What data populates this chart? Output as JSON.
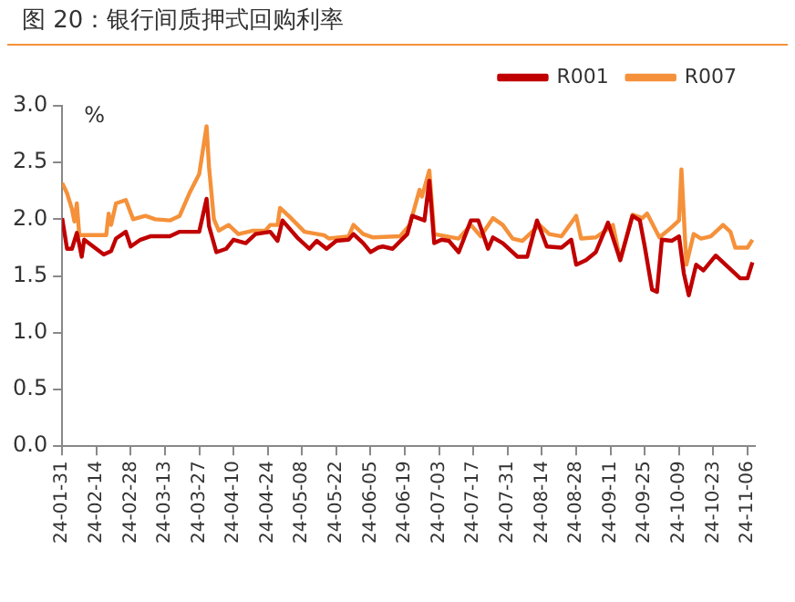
{
  "chart_data": {
    "type": "line",
    "title": "图 20：银行间质押式回购利率",
    "ylabel": "%",
    "xlim": [
      "--01-31",
      "--11-09"
    ],
    "xticks": [
      {
        "value": "--01-31",
        "label": "24-01-31"
      },
      {
        "value": "--02-14",
        "label": "24-02-14"
      },
      {
        "value": "--02-28",
        "label": "24-02-28"
      },
      {
        "value": "--03-13",
        "label": "24-03-13"
      },
      {
        "value": "--03-27",
        "label": "24-03-27"
      },
      {
        "value": "--04-10",
        "label": "24-04-10"
      },
      {
        "value": "--04-24",
        "label": "24-04-24"
      },
      {
        "value": "--05-08",
        "label": "24-05-08"
      },
      {
        "value": "--05-22",
        "label": "24-05-22"
      },
      {
        "value": "--06-05",
        "label": "24-06-05"
      },
      {
        "value": "--06-19",
        "label": "24-06-19"
      },
      {
        "value": "--07-03",
        "label": "24-07-03"
      },
      {
        "value": "--07-17",
        "label": "24-07-17"
      },
      {
        "value": "--07-31",
        "label": "24-07-31"
      },
      {
        "value": "--08-14",
        "label": "24-08-14"
      },
      {
        "value": "--08-28",
        "label": "24-08-28"
      },
      {
        "value": "--09-11",
        "label": "24-09-11"
      },
      {
        "value": "--09-25",
        "label": "24-09-25"
      },
      {
        "value": "--10-09",
        "label": "24-10-09"
      },
      {
        "value": "--10-23",
        "label": "24-10-23"
      },
      {
        "value": "--11-06",
        "label": "24-11-06"
      }
    ],
    "ylim": [
      0,
      3
    ],
    "yticks": [
      {
        "value": 0,
        "label": "0.0"
      },
      {
        "value": 0.5,
        "label": "0.5"
      },
      {
        "value": 1,
        "label": "1.0"
      },
      {
        "value": 1.5,
        "label": "1.5"
      },
      {
        "value": 2,
        "label": "2.0"
      },
      {
        "value": 2.5,
        "label": "2.5"
      },
      {
        "value": 3,
        "label": "3.0"
      }
    ],
    "grid": false,
    "legend": "top",
    "marker": "none",
    "line_style": "solid",
    "series": [
      {
        "name": "R001",
        "color": "#c00000",
        "x": [
          "--01-31",
          "--02-02",
          "--02-04",
          "--02-06",
          "--02-07",
          "--02-08",
          "--02-09",
          "--02-17",
          "--02-20",
          "--02-22",
          "--02-26",
          "--02-28",
          "--03-03",
          "--03-07",
          "--03-15",
          "--03-19",
          "--03-27",
          "--03-30",
          "--03-31",
          "--04-03",
          "--04-07",
          "--04-10",
          "--04-15",
          "--04-19",
          "--04-25",
          "--04-28",
          "--04-30",
          "--05-06",
          "--05-11",
          "--05-14",
          "--05-18",
          "--05-22",
          "--05-27",
          "--05-29",
          "--06-02",
          "--06-05",
          "--06-08",
          "--06-10",
          "--06-14",
          "--06-20",
          "--06-22",
          "--06-27",
          "--06-29",
          "--07-01",
          "--07-04",
          "--07-07",
          "--07-11",
          "--07-16",
          "--07-19",
          "--07-23",
          "--07-25",
          "--07-29",
          "--08-04",
          "--08-08",
          "--08-12",
          "--08-16",
          "--08-22",
          "--08-26",
          "--08-28",
          "--09-01",
          "--09-05",
          "--09-10",
          "--09-15",
          "--09-20",
          "--09-23",
          "--09-25",
          "--09-28",
          "--09-30",
          "--10-02",
          "--10-06",
          "--10-09",
          "--10-11",
          "--10-13",
          "--10-16",
          "--10-19",
          "--10-24",
          "--10-28",
          "--11-03",
          "--11-06",
          "--11-08"
        ],
        "values": [
          2.01,
          1.74,
          1.74,
          1.88,
          1.78,
          1.67,
          1.82,
          1.69,
          1.72,
          1.83,
          1.89,
          1.76,
          1.82,
          1.85,
          1.85,
          1.89,
          1.89,
          2.18,
          1.94,
          1.71,
          1.74,
          1.82,
          1.79,
          1.87,
          1.89,
          1.81,
          1.99,
          1.84,
          1.74,
          1.81,
          1.74,
          1.81,
          1.82,
          1.87,
          1.79,
          1.71,
          1.75,
          1.76,
          1.74,
          1.87,
          2.03,
          1.99,
          2.34,
          1.79,
          1.82,
          1.81,
          1.71,
          1.99,
          1.99,
          1.74,
          1.84,
          1.79,
          1.67,
          1.67,
          1.99,
          1.76,
          1.75,
          1.82,
          1.6,
          1.64,
          1.71,
          1.97,
          1.64,
          2.03,
          1.99,
          1.76,
          1.38,
          1.36,
          1.82,
          1.81,
          1.85,
          1.52,
          1.33,
          1.6,
          1.55,
          1.68,
          1.6,
          1.48,
          1.48,
          1.62
        ]
      },
      {
        "name": "R007",
        "color": "#f5913a",
        "x": [
          "--01-31",
          "--02-02",
          "--02-04",
          "--02-05",
          "--02-06",
          "--02-07",
          "--02-18",
          "--02-19",
          "--02-20",
          "--02-22",
          "--02-26",
          "--02-29",
          "--03-05",
          "--03-09",
          "--03-15",
          "--03-19",
          "--03-23",
          "--03-27",
          "--03-30",
          "--03-31",
          "--04-02",
          "--04-04",
          "--04-08",
          "--04-12",
          "--04-18",
          "--04-23",
          "--04-25",
          "--04-28",
          "--04-29",
          "--05-03",
          "--05-09",
          "--05-17",
          "--05-19",
          "--05-27",
          "--05-29",
          "--06-02",
          "--06-06",
          "--06-17",
          "--06-21",
          "--06-25",
          "--06-26",
          "--06-29",
          "--07-01",
          "--07-06",
          "--07-11",
          "--07-16",
          "--07-20",
          "--07-25",
          "--07-29",
          "--08-02",
          "--08-06",
          "--08-13",
          "--08-17",
          "--08-22",
          "--08-28",
          "--08-30",
          "--09-05",
          "--09-09",
          "--09-12",
          "--09-15",
          "--09-20",
          "--09-24",
          "--09-26",
          "--10-01",
          "--10-06",
          "--10-09",
          "--10-10",
          "--10-12",
          "--10-15",
          "--10-18",
          "--10-22",
          "--10-27",
          "--10-30",
          "--11-01",
          "--11-06",
          "--11-08"
        ],
        "values": [
          2.32,
          2.23,
          2.09,
          1.98,
          2.14,
          1.86,
          1.86,
          2.05,
          1.95,
          2.14,
          2.17,
          2.0,
          2.03,
          2.0,
          1.99,
          2.03,
          2.23,
          2.4,
          2.82,
          2.46,
          2.0,
          1.9,
          1.95,
          1.87,
          1.9,
          1.9,
          1.95,
          1.95,
          2.1,
          2.02,
          1.89,
          1.86,
          1.83,
          1.85,
          1.95,
          1.87,
          1.84,
          1.85,
          1.95,
          2.26,
          2.2,
          2.43,
          1.87,
          1.85,
          1.83,
          1.95,
          1.85,
          2.01,
          1.95,
          1.83,
          1.81,
          1.95,
          1.87,
          1.85,
          2.03,
          1.83,
          1.84,
          1.9,
          1.95,
          1.64,
          2.04,
          2.01,
          2.05,
          1.84,
          1.93,
          1.99,
          2.44,
          1.6,
          1.87,
          1.83,
          1.85,
          1.95,
          1.89,
          1.75,
          1.75,
          1.82
        ]
      }
    ]
  }
}
